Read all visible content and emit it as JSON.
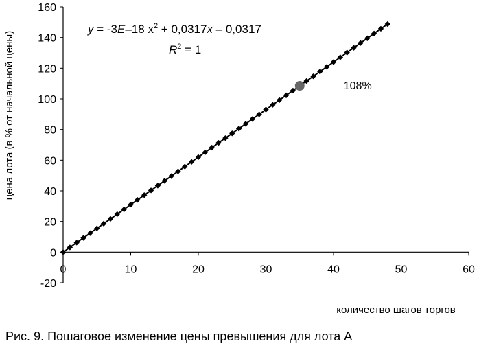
{
  "chart_data": {
    "type": "scatter",
    "xlabel": "количество шагов торгов",
    "ylabel": "цена лота (в % от начальной цены)",
    "xlim": [
      0,
      60
    ],
    "ylim": [
      -20,
      160
    ],
    "x_ticks": [
      "0",
      "10",
      "20",
      "30",
      "40",
      "50",
      "60"
    ],
    "y_ticks": [
      "-20",
      "0",
      "20",
      "40",
      "60",
      "80",
      "100",
      "120",
      "140",
      "160"
    ],
    "grid": false,
    "series": [
      {
        "x": [
          0,
          1,
          2,
          3,
          4,
          5,
          6,
          7,
          8,
          9,
          10,
          11,
          12,
          13,
          14,
          15,
          16,
          17,
          18,
          19,
          20,
          21,
          22,
          23,
          24,
          25,
          26,
          27,
          28,
          29,
          30,
          31,
          32,
          33,
          34,
          35,
          36,
          37,
          38,
          39,
          40,
          41,
          42,
          43,
          44,
          45,
          46,
          47,
          48
        ],
        "y": [
          0,
          3.1,
          6.2,
          9.3,
          12.4,
          15.5,
          18.6,
          21.7,
          24.8,
          27.9,
          31.0,
          34.1,
          37.2,
          40.3,
          43.4,
          46.5,
          49.6,
          52.7,
          55.8,
          58.9,
          62.0,
          65.1,
          68.2,
          71.3,
          74.4,
          77.5,
          80.6,
          83.7,
          86.8,
          89.9,
          93.0,
          96.1,
          99.2,
          102.3,
          105.4,
          108.5,
          111.6,
          114.7,
          117.8,
          120.9,
          124.0,
          127.1,
          130.2,
          133.3,
          136.4,
          139.5,
          142.6,
          145.7,
          148.8
        ],
        "marker": "diamond",
        "color": "#000000"
      }
    ],
    "highlight": {
      "x": 35,
      "y": 108.5,
      "label": "108%",
      "color": "#666666"
    },
    "trendline": {
      "equation": {
        "y": "y",
        "eq_sign": " = -3",
        "e": "E",
        "minus18": "–18",
        "x1": " x",
        "exp": "2",
        "rest": " + 0,0317",
        "x2": "x",
        "tail": " – 0,0317"
      },
      "r2": {
        "r": "R",
        "exp": "2",
        "rest": " = 1"
      }
    }
  },
  "caption": "Рис. 9. Пошаговое изменение цены превышения для лота А"
}
